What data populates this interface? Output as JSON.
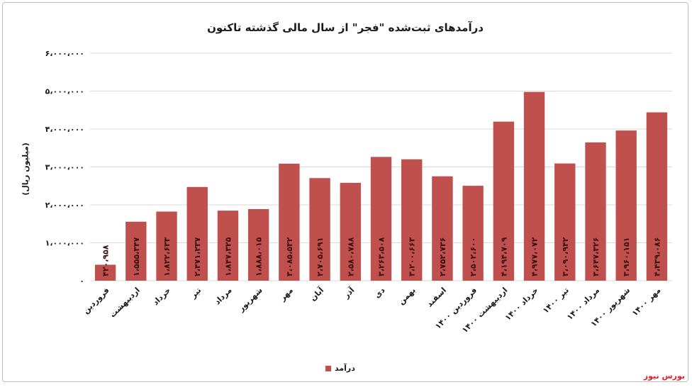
{
  "chart_data": {
    "type": "bar",
    "title": "درآمدهای ثبت‌شده \"فجر\" از سال مالی گذشته تاکنون",
    "ylabel": "(میلیون ریال)",
    "xlabel": "",
    "ylim": [
      0,
      6000000
    ],
    "yticks": [
      0,
      1000000,
      2000000,
      3000000,
      4000000,
      5000000,
      6000000
    ],
    "ytick_labels": [
      "۰",
      "۱،۰۰۰،۰۰۰",
      "۲،۰۰۰،۰۰۰",
      "۳،۰۰۰،۰۰۰",
      "۴،۰۰۰،۰۰۰",
      "۵،۰۰۰،۰۰۰",
      "۶،۰۰۰،۰۰۰"
    ],
    "grid": true,
    "legend_position": "bottom",
    "categories": [
      "فروردین",
      "اردیبهشت",
      "خرداد",
      "تیر",
      "مرداد",
      "شهریور",
      "مهر",
      "آبان",
      "آذر",
      "دی",
      "بهمن",
      "اسفند",
      "فروردین ۱۴۰۰",
      "اردیبهشت ۱۴۰۰",
      "خرداد ۱۴۰۰",
      "تیر ۱۴۰۰",
      "مرداد ۱۴۰۰",
      "شهریور ۱۴۰۰",
      "مهر ۱۴۰۰"
    ],
    "series": [
      {
        "name": "درآمد",
        "color": "#c0504d",
        "values": [
          420958,
          1555347,
          1822633,
          2471237,
          1847325,
          1888015,
          3085532,
          2705691,
          2580788,
          3263508,
          3200663,
          2752736,
          2502600,
          4194709,
          4977072,
          3090942,
          3647326,
          3960151,
          4439086
        ],
        "labels": [
          "۴۲۰،۹۵۸",
          "۱،۵۵۵،۳۴۷",
          "۱،۸۲۲،۶۳۳",
          "۲،۴۷۱،۲۳۷",
          "۱،۸۴۷،۳۲۵",
          "۱،۸۸۸،۰۱۵",
          "۳،۰۸۵،۵۳۲",
          "۲،۷۰۵،۶۹۱",
          "۲،۵۸۰،۷۸۸",
          "۳،۲۶۳،۵۰۸",
          "۳،۲۰۰،۶۶۳",
          "۲،۷۵۲،۷۳۶",
          "۲،۵۰۲،۶۰۰",
          "۴،۱۹۴،۷۰۹",
          "۴،۹۷۷،۰۷۲",
          "۳،۰۹۰،۹۴۲",
          "۳،۶۴۷،۳۲۶",
          "۳،۹۶۰،۱۵۱",
          "۴،۴۳۹،۰۸۶"
        ]
      }
    ]
  },
  "legend": {
    "label": "درآمد"
  },
  "brand": "بورس نیوز"
}
